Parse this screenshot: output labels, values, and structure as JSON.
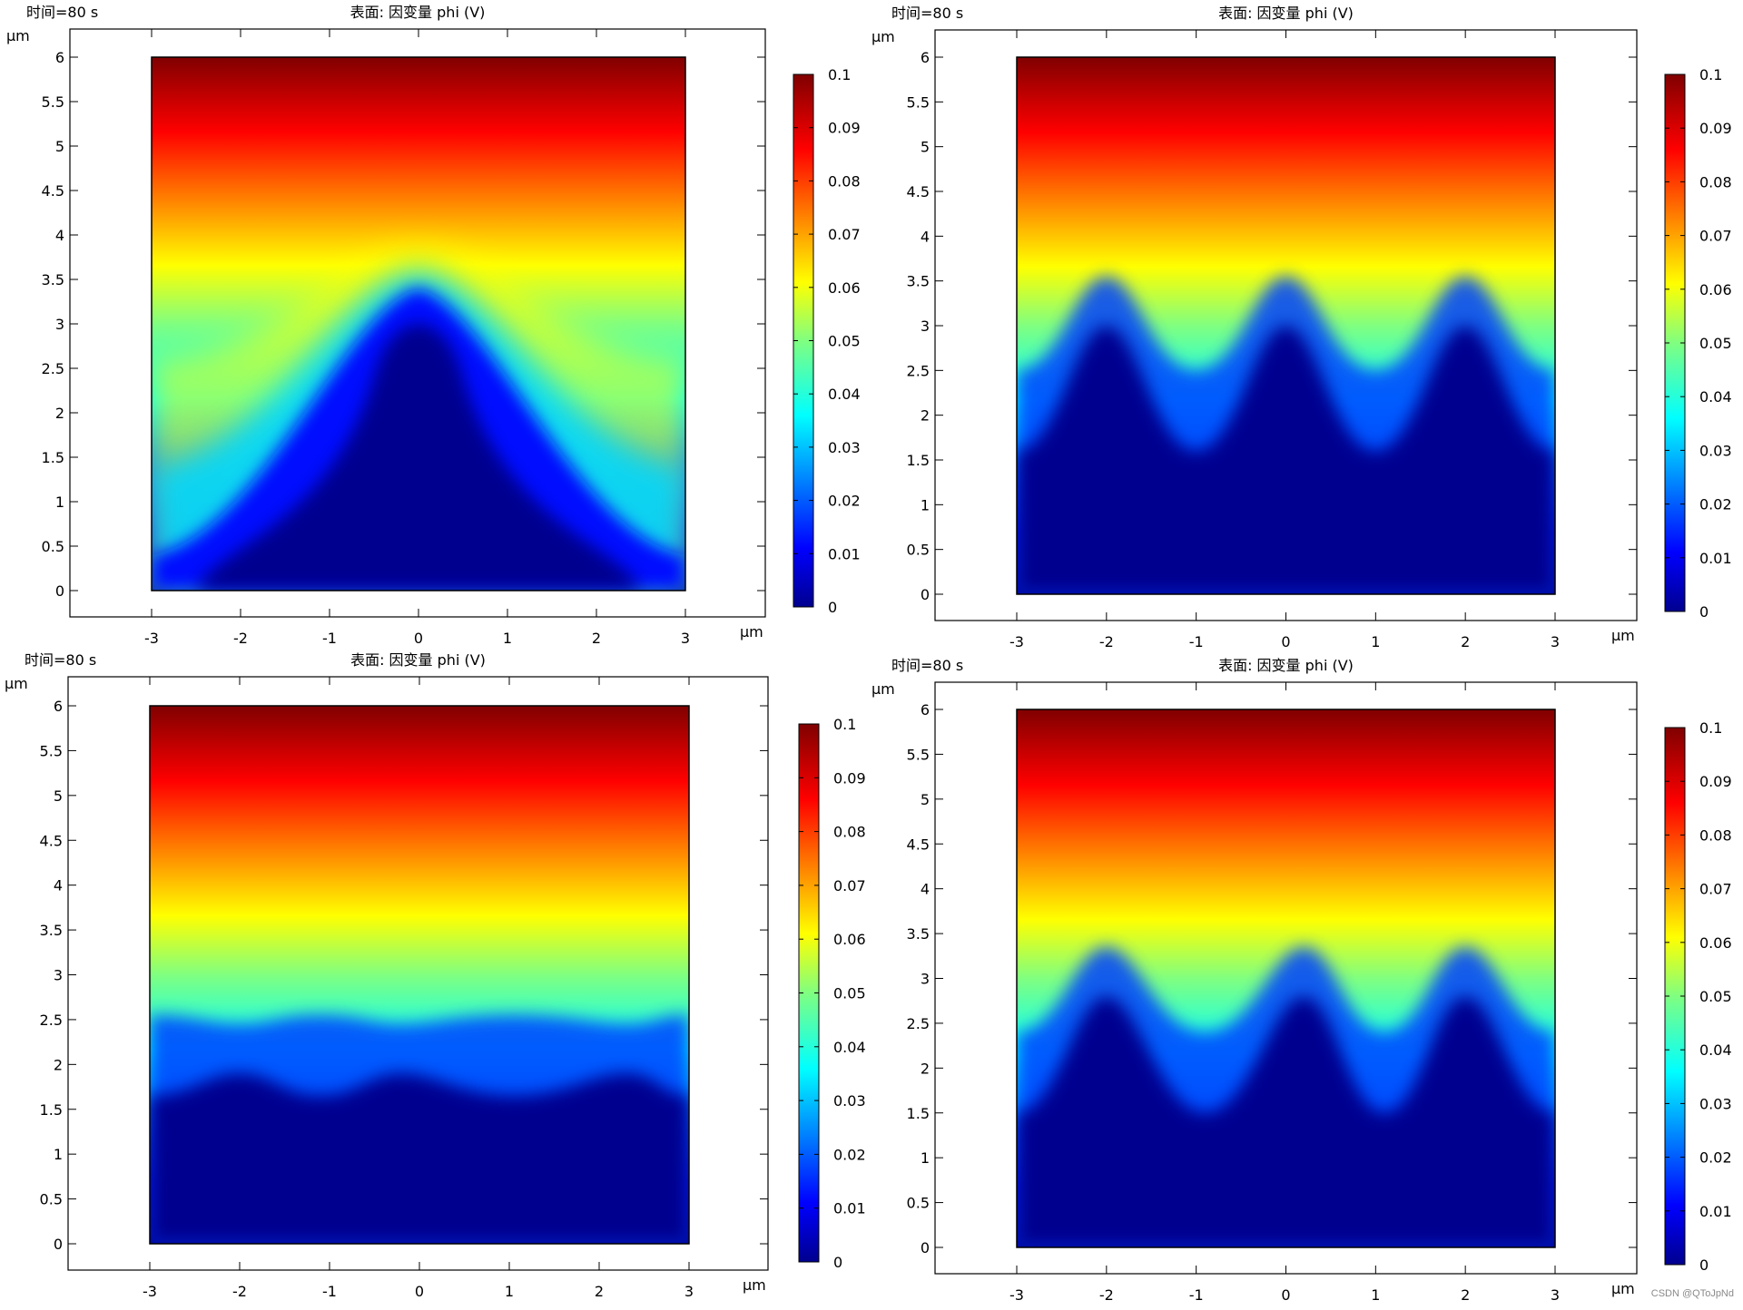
{
  "figure": {
    "watermark": "CSDN @QToJpNd"
  },
  "chart_data": [
    {
      "type": "heatmap",
      "time_label": "时间=80 s",
      "title": "表面: 因变量 phi (V)",
      "xlabel": "μm",
      "ylabel": "μm",
      "xlim": [
        -3,
        3
      ],
      "ylim": [
        0,
        6
      ],
      "xticks": [
        "-3",
        "-2",
        "-1",
        "0",
        "1",
        "2",
        "3"
      ],
      "yticks": [
        "0",
        "0.5",
        "1",
        "1.5",
        "2",
        "2.5",
        "3",
        "3.5",
        "4",
        "4.5",
        "5",
        "5.5",
        "6"
      ],
      "colorbar": {
        "min": 0,
        "max": 0.1,
        "bottom_label": "0",
        "ticks": [
          "0.1",
          "0.09",
          "0.08",
          "0.07",
          "0.06",
          "0.05",
          "0.04",
          "0.03",
          "0.02",
          "0.01"
        ]
      },
      "field": {
        "pattern": "single-peak",
        "peak_x": [
          0
        ],
        "peak_height_um": 3.35,
        "flank_height_um": 0.5,
        "edge_flank_um": 2.7
      }
    },
    {
      "type": "heatmap",
      "time_label": "时间=80 s",
      "title": "表面: 因变量 phi (V)",
      "xlabel": "μm",
      "ylabel": "μm",
      "xlim": [
        -3,
        3
      ],
      "ylim": [
        0,
        6
      ],
      "xticks": [
        "-3",
        "-2",
        "-1",
        "0",
        "1",
        "2",
        "3"
      ],
      "yticks": [
        "0",
        "0.5",
        "1",
        "1.5",
        "2",
        "2.5",
        "3",
        "3.5",
        "4",
        "4.5",
        "5",
        "5.5",
        "6"
      ],
      "colorbar": {
        "min": 0,
        "max": 0.1,
        "bottom_label": "0",
        "ticks": [
          "0.1",
          "0.09",
          "0.08",
          "0.07",
          "0.06",
          "0.05",
          "0.04",
          "0.03",
          "0.02",
          "0.01"
        ]
      },
      "field": {
        "pattern": "three-peaks",
        "peak_x": [
          -2,
          0,
          2
        ],
        "peak_height_um": 3.0,
        "valley_height_um": 1.6
      }
    },
    {
      "type": "heatmap",
      "time_label": "时间=80 s",
      "title": "表面: 因变量 phi (V)",
      "xlabel": "μm",
      "ylabel": "μm",
      "xlim": [
        -3,
        3
      ],
      "ylim": [
        0,
        6
      ],
      "xticks": [
        "-3",
        "-2",
        "-1",
        "0",
        "1",
        "2",
        "3"
      ],
      "yticks": [
        "0",
        "0.5",
        "1",
        "1.5",
        "2",
        "2.5",
        "3",
        "3.5",
        "4",
        "4.5",
        "5",
        "5.5",
        "6"
      ],
      "colorbar": {
        "min": 0,
        "max": 0.1,
        "bottom_label": "0",
        "ticks": [
          "0.1",
          "0.09",
          "0.08",
          "0.07",
          "0.06",
          "0.05",
          "0.04",
          "0.03",
          "0.02",
          "0.01"
        ]
      },
      "field": {
        "pattern": "flat-bumpy",
        "peak_x": [
          -2,
          -0.2,
          2.3
        ],
        "peak_height_um": 1.9,
        "valley_height_um": 1.65
      }
    },
    {
      "type": "heatmap",
      "time_label": "时间=80 s",
      "title": "表面: 因变量 phi (V)",
      "xlabel": "μm",
      "ylabel": "μm",
      "xlim": [
        -3,
        3
      ],
      "ylim": [
        0,
        6
      ],
      "xticks": [
        "-3",
        "-2",
        "-1",
        "0",
        "1",
        "2",
        "3"
      ],
      "yticks": [
        "0",
        "0.5",
        "1",
        "1.5",
        "2",
        "2.5",
        "3",
        "3.5",
        "4",
        "4.5",
        "5",
        "5.5",
        "6"
      ],
      "colorbar": {
        "min": 0,
        "max": 0.1,
        "bottom_label": "0",
        "ticks": [
          "0.1",
          "0.09",
          "0.08",
          "0.07",
          "0.06",
          "0.05",
          "0.04",
          "0.03",
          "0.02",
          "0.01"
        ]
      },
      "field": {
        "pattern": "three-peaks",
        "peak_x": [
          -2,
          0.2,
          2
        ],
        "peak_height_um": 2.8,
        "valley_height_um": 1.5
      }
    }
  ]
}
